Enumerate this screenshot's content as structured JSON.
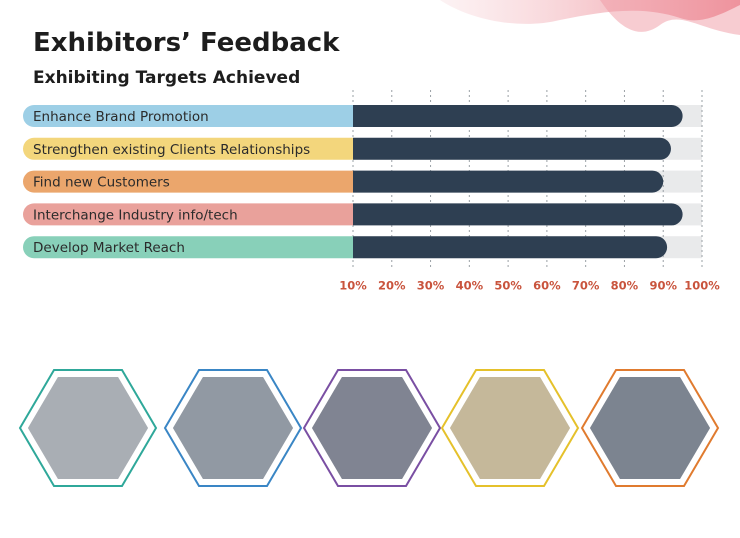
{
  "chart_data": {
    "type": "bar",
    "orientation": "horizontal",
    "title": "Exhibitors’ Feedback",
    "subtitle": "Exhibiting Targets Achieved",
    "categories": [
      "Enhance Brand Promotion",
      "Strengthen existing Clients Relationships",
      "Find new Customers",
      "Interchange Industry info/tech",
      "Develop Market Reach"
    ],
    "category_colors": [
      "#9dcfe6",
      "#f3d67c",
      "#eba66c",
      "#e9a19b",
      "#88d0b9"
    ],
    "values": [
      95,
      92,
      90,
      95,
      91
    ],
    "color": "#2e3f52",
    "xlim": [
      10,
      100
    ],
    "xticks": [
      {
        "value": 10,
        "label": "10%"
      },
      {
        "value": 20,
        "label": "20%"
      },
      {
        "value": 30,
        "label": "30%"
      },
      {
        "value": 40,
        "label": "40%"
      },
      {
        "value": 50,
        "label": "50%"
      },
      {
        "value": 60,
        "label": "60%"
      },
      {
        "value": 70,
        "label": "70%"
      },
      {
        "value": 80,
        "label": "80%"
      },
      {
        "value": 90,
        "label": "90%"
      },
      {
        "value": 100,
        "label": "100%"
      }
    ],
    "grid": true
  }
}
